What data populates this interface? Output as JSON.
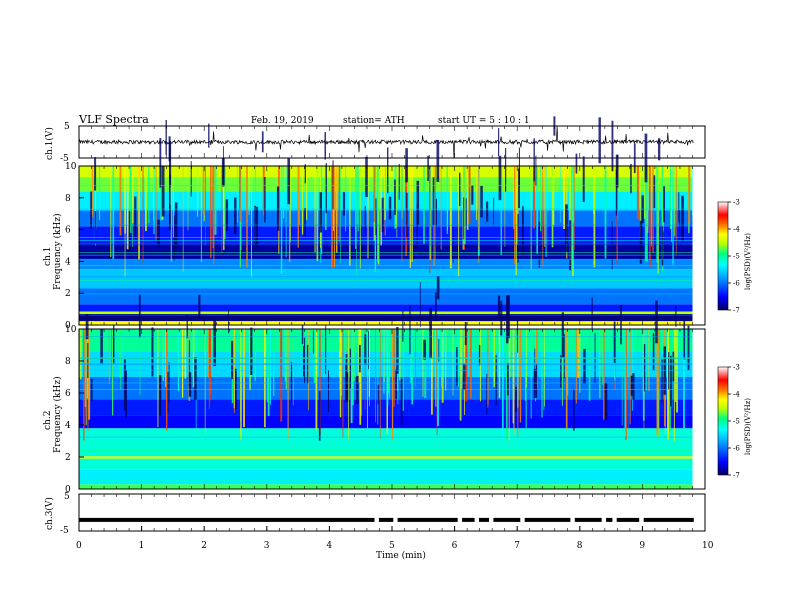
{
  "header": {
    "title": "VLF  Spectra",
    "date": "Feb. 19, 2019",
    "station": "station= ATH",
    "start": "start  UT  =    5  : 10 : 1"
  },
  "colors": {
    "trace": "#000000",
    "colormap": [
      "#000060",
      "#0000ff",
      "#00a0ff",
      "#00ffff",
      "#00ff80",
      "#c0ff00",
      "#ffff00",
      "#ff8000",
      "#ff0000",
      "#ffffff"
    ]
  },
  "chart_data": [
    {
      "type": "line",
      "id": "ch1",
      "ylabel": "ch.1(V)",
      "ylim": [
        -5,
        5
      ],
      "yticks": [
        "5",
        "-5"
      ],
      "xlim": [
        0,
        10
      ],
      "description_values": {
        "baseline_v": 0.0,
        "noise_v": 0.6,
        "spike_max_v": 5
      }
    },
    {
      "type": "heatmap",
      "id": "ch1-spectrogram",
      "ylabel_line1": "ch.1",
      "ylabel_line2": "Frequency  (kHz)",
      "ylim": [
        0,
        10
      ],
      "yticks": [
        "0",
        "2",
        "4",
        "6",
        "8",
        "10"
      ],
      "xlim": [
        0,
        9.8
      ],
      "colorbar": {
        "label": "log(PSD)(V²/Hz)",
        "ticks": [
          "-3",
          "-4",
          "-5",
          "-6",
          "-7"
        ],
        "range": [
          -7,
          -3
        ]
      },
      "bands": [
        {
          "f0": 0,
          "f1": 0.25,
          "level": -4.2
        },
        {
          "f0": 0.25,
          "f1": 0.7,
          "level": -6.9
        },
        {
          "f0": 0.7,
          "f1": 0.85,
          "level": -4.5
        },
        {
          "f0": 0.85,
          "f1": 1.3,
          "level": -6.4
        },
        {
          "f0": 1.3,
          "f1": 2.3,
          "level": -6.0
        },
        {
          "f0": 2.3,
          "f1": 3.5,
          "level": -5.6
        },
        {
          "f0": 3.5,
          "f1": 4.1,
          "level": -5.9
        },
        {
          "f0": 4.1,
          "f1": 5.1,
          "level": -6.8
        },
        {
          "f0": 5.1,
          "f1": 6.2,
          "level": -6.4
        },
        {
          "f0": 6.2,
          "f1": 7.2,
          "level": -6.0
        },
        {
          "f0": 7.2,
          "f1": 8.4,
          "level": -5.4
        },
        {
          "f0": 8.4,
          "f1": 9.3,
          "level": -4.7
        },
        {
          "f0": 9.3,
          "f1": 10,
          "level": -4.4
        }
      ]
    },
    {
      "type": "heatmap",
      "id": "ch2-spectrogram",
      "ylabel_line1": "ch.2",
      "ylabel_line2": "Frequency  (kHz)",
      "ylim": [
        0,
        10
      ],
      "yticks": [
        "0",
        "2",
        "4",
        "6",
        "8",
        "10"
      ],
      "xlim": [
        0,
        9.8
      ],
      "colorbar": {
        "label": "log(PSD)(V²/Hz)",
        "ticks": [
          "-3",
          "-4",
          "-5",
          "-6",
          "-7"
        ],
        "range": [
          -7,
          -3
        ]
      },
      "bands": [
        {
          "f0": 0,
          "f1": 0.3,
          "level": -4.8
        },
        {
          "f0": 0.3,
          "f1": 1.2,
          "level": -5.4
        },
        {
          "f0": 1.2,
          "f1": 1.9,
          "level": -5.2
        },
        {
          "f0": 1.9,
          "f1": 2.05,
          "level": -4.4
        },
        {
          "f0": 2.05,
          "f1": 3.8,
          "level": -5.2
        },
        {
          "f0": 3.8,
          "f1": 4.6,
          "level": -6.5
        },
        {
          "f0": 4.6,
          "f1": 5.6,
          "level": -6.4
        },
        {
          "f0": 5.6,
          "f1": 7.0,
          "level": -6.0
        },
        {
          "f0": 7.0,
          "f1": 8.6,
          "level": -5.5
        },
        {
          "f0": 8.6,
          "f1": 10,
          "level": -5.0
        }
      ]
    },
    {
      "type": "line",
      "id": "ch3",
      "ylabel": "ch.3(V)",
      "ylim": [
        -5,
        5
      ],
      "yticks": [
        "5",
        "-5"
      ],
      "xlim": [
        0,
        10
      ],
      "xlabel": "Time  (min)",
      "xticks": [
        "0",
        "1",
        "2",
        "3",
        "4",
        "5",
        "6",
        "7",
        "8",
        "9",
        "10"
      ],
      "level_v": -2,
      "gaps_min": [
        4.72,
        5.02,
        6.05,
        6.32,
        6.55,
        7.05,
        7.85,
        8.35,
        8.52,
        8.95
      ]
    }
  ]
}
